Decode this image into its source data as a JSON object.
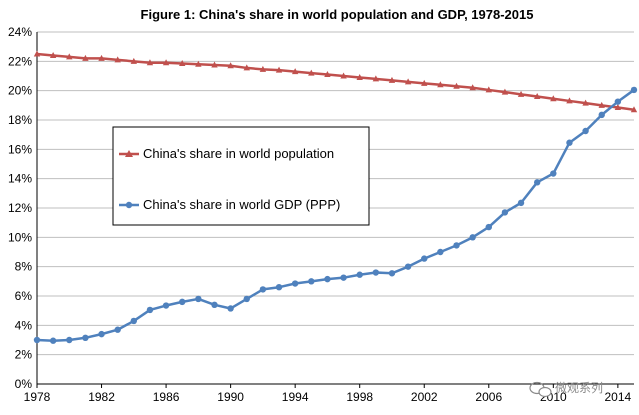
{
  "chart_data": {
    "type": "line",
    "title": "Figure 1: China's share in world population and GDP, 1978-2015",
    "xlabel": "",
    "ylabel": "",
    "xlim": [
      1978,
      2015
    ],
    "ylim": [
      0,
      24
    ],
    "y_ticks": [
      "0%",
      "2%",
      "4%",
      "6%",
      "8%",
      "10%",
      "12%",
      "14%",
      "16%",
      "18%",
      "20%",
      "22%",
      "24%"
    ],
    "x_ticks": [
      "1978",
      "1982",
      "1986",
      "1990",
      "1994",
      "1998",
      "2002",
      "2006",
      "2010",
      "2014"
    ],
    "grid": true,
    "legend_position": "center-left",
    "x": [
      1978,
      1979,
      1980,
      1981,
      1982,
      1983,
      1984,
      1985,
      1986,
      1987,
      1988,
      1989,
      1990,
      1991,
      1992,
      1993,
      1994,
      1995,
      1996,
      1997,
      1998,
      1999,
      2000,
      2001,
      2002,
      2003,
      2004,
      2005,
      2006,
      2007,
      2008,
      2009,
      2010,
      2011,
      2012,
      2013,
      2014,
      2015
    ],
    "series": [
      {
        "name": "China's share in world population",
        "color": "#c0504d",
        "marker": "triangle",
        "values": [
          22.5,
          22.4,
          22.3,
          22.2,
          22.2,
          22.1,
          22.0,
          21.9,
          21.9,
          21.85,
          21.8,
          21.75,
          21.7,
          21.55,
          21.45,
          21.4,
          21.3,
          21.2,
          21.1,
          21.0,
          20.9,
          20.8,
          20.7,
          20.6,
          20.5,
          20.4,
          20.3,
          20.2,
          20.05,
          19.9,
          19.75,
          19.6,
          19.45,
          19.3,
          19.15,
          19.0,
          18.85,
          18.7
        ]
      },
      {
        "name": "China's share in world GDP (PPP)",
        "color": "#4f81bd",
        "marker": "circle",
        "values": [
          3.0,
          2.95,
          3.0,
          3.15,
          3.4,
          3.7,
          4.3,
          5.05,
          5.35,
          5.6,
          5.8,
          5.4,
          5.15,
          5.8,
          6.45,
          6.6,
          6.85,
          7.0,
          7.15,
          7.25,
          7.45,
          7.6,
          7.55,
          8.0,
          8.55,
          9.0,
          9.45,
          10.0,
          10.7,
          11.7,
          12.35,
          13.75,
          14.35,
          16.45,
          17.25,
          18.35,
          19.25,
          20.05
        ]
      }
    ]
  },
  "watermark": {
    "text": "微观系列",
    "icon": "wechat-icon"
  }
}
